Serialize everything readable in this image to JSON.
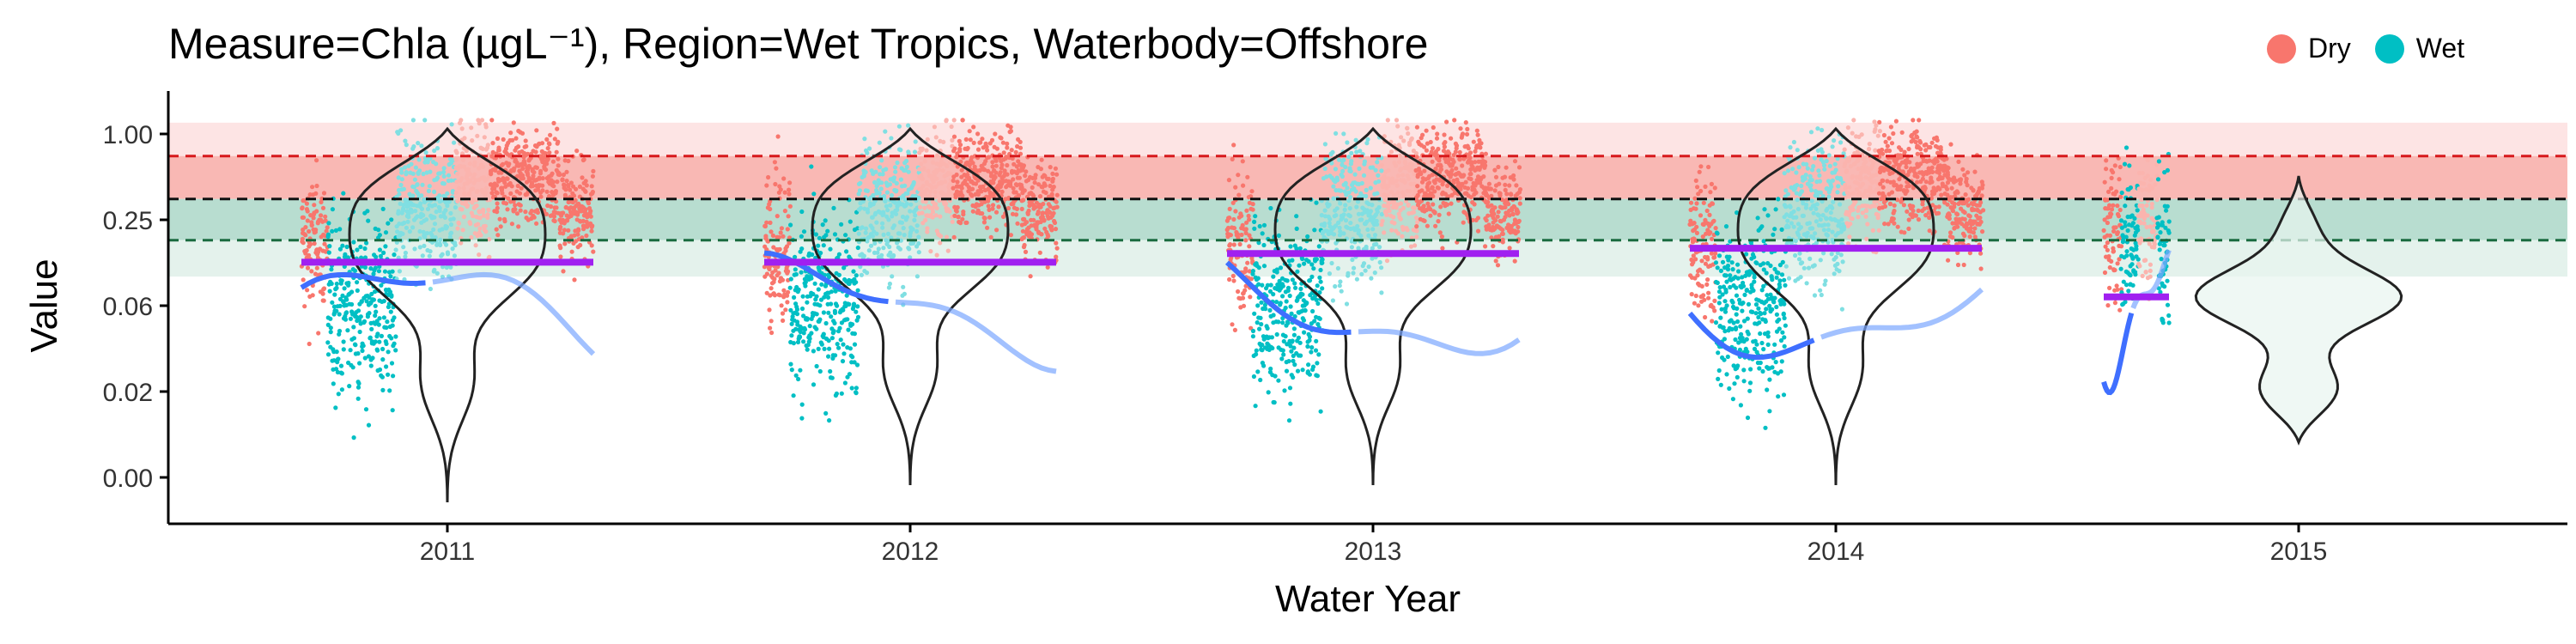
{
  "chart_data": {
    "type": "scatter",
    "title": "Measure=Chla (µgL⁻¹), Region=Wet Tropics, Waterbody=Offshore",
    "xlabel": "Water Year",
    "ylabel": "Value",
    "x_ticks": [
      "2011",
      "2012",
      "2013",
      "2014",
      "2015"
    ],
    "y_ticks": [
      "1.00",
      "0.25",
      "0.06",
      "0.02",
      "0.00"
    ],
    "y_scale": "log",
    "grid": false,
    "legend_position": "top-right",
    "legend": [
      {
        "name": "Dry",
        "color": "#F8766D"
      },
      {
        "name": "Wet",
        "color": "#00BFC4"
      }
    ],
    "reference_lines": [
      {
        "value": 0.7,
        "color": "#d7191c",
        "style": "dashed"
      },
      {
        "value": 0.35,
        "color": "#111111",
        "style": "dashed"
      },
      {
        "value": 0.18,
        "color": "#1a6b40",
        "style": "dashed"
      }
    ],
    "bands": [
      {
        "from": 1.2,
        "to": 0.7,
        "color": "#fde4e4"
      },
      {
        "from": 0.7,
        "to": 0.35,
        "color": "#f9b8b4"
      },
      {
        "from": 0.35,
        "to": 0.18,
        "color": "#b8ddd0"
      },
      {
        "from": 0.18,
        "to": 0.1,
        "color": "#e4f2ec"
      }
    ],
    "years": [
      {
        "year": "2011",
        "dry_median": 0.126,
        "wet_median": 0.126,
        "annual_median": 0.126
      },
      {
        "year": "2012",
        "dry_median": 0.126,
        "wet_median": 0.126,
        "annual_median": 0.126
      },
      {
        "year": "2013",
        "dry_median": 0.145,
        "wet_median": 0.145,
        "annual_median": 0.145
      },
      {
        "year": "2014",
        "dry_median": 0.158,
        "wet_median": 0.158,
        "annual_median": 0.158
      },
      {
        "year": "2015",
        "dry_median": 0.072,
        "wet_median": 0.072,
        "annual_median": 0.072
      }
    ]
  }
}
